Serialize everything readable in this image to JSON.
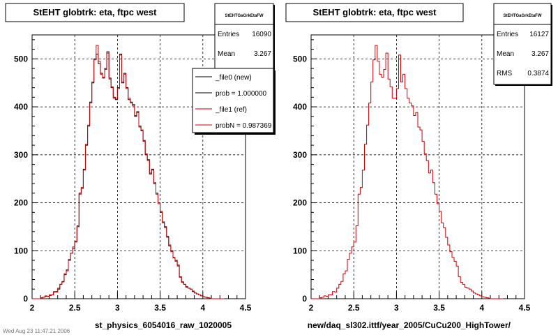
{
  "chart_data": [
    {
      "type": "histogram",
      "title": "StEHT globtrk: eta, ftpc west",
      "xlabel": "st_physics_6054016_raw_1020005",
      "xlim": [
        2,
        4.5
      ],
      "ylim": [
        0,
        550
      ],
      "x_ticks": [
        "2",
        "2.5",
        "3",
        "3.5",
        "4",
        "4.5"
      ],
      "y_ticks": [
        "0",
        "100",
        "200",
        "300",
        "400",
        "500"
      ],
      "grid": true,
      "bin_edges_start": 2.0,
      "bin_width": 0.025,
      "series": [
        {
          "name": "_file0 (new)",
          "color": "#000000",
          "values": [
            0,
            0,
            0,
            0,
            2,
            3,
            5,
            5,
            7,
            8,
            14,
            15,
            20,
            30,
            35,
            50,
            60,
            80,
            95,
            105,
            120,
            150,
            220,
            230,
            270,
            320,
            360,
            410,
            450,
            500,
            510,
            490,
            470,
            460,
            480,
            515,
            460,
            440,
            420,
            415,
            440,
            510,
            450,
            470,
            440,
            415,
            410,
            405,
            380,
            390,
            360,
            350,
            330,
            300,
            290,
            260,
            270,
            240,
            220,
            200,
            180,
            160,
            150,
            130,
            110,
            100,
            85,
            80,
            70,
            45,
            35,
            30,
            25,
            22,
            20,
            15,
            12,
            10,
            8,
            6,
            4,
            3,
            2,
            1,
            0,
            0,
            0,
            0,
            0,
            0
          ]
        },
        {
          "name": "_file1 (ref)",
          "color": "#cc0000",
          "values": [
            0,
            0,
            0,
            0,
            2,
            3,
            6,
            5,
            8,
            8,
            15,
            14,
            22,
            30,
            36,
            52,
            58,
            82,
            95,
            108,
            118,
            152,
            218,
            232,
            268,
            322,
            362,
            408,
            452,
            498,
            528,
            495,
            468,
            462,
            478,
            512,
            458,
            442,
            418,
            418,
            438,
            508,
            452,
            468,
            438,
            418,
            408,
            402,
            382,
            388,
            358,
            352,
            328,
            302,
            288,
            262,
            268,
            242,
            218,
            198,
            182,
            158,
            148,
            128,
            112,
            98,
            86,
            78,
            68,
            46,
            34,
            30,
            24,
            22,
            20,
            16,
            12,
            10,
            8,
            6,
            4,
            3,
            2,
            1,
            0,
            0,
            0,
            0,
            0,
            0
          ]
        }
      ],
      "stats": {
        "header": "StEHTGaGrkEtaFW",
        "rows": [
          {
            "label": "Entries",
            "value": "16090"
          },
          {
            "label": "Mean",
            "value": "3.267"
          }
        ]
      },
      "legend": [
        {
          "label": "_file0 (new)",
          "color": "#000000"
        },
        {
          "label": "prob = 1.000000",
          "color": "#000000"
        },
        {
          "label": "_file1 (ref)",
          "color": "#cc0000"
        },
        {
          "label": "probN = 0.987369",
          "color": "#cc0000"
        }
      ]
    },
    {
      "type": "histogram",
      "title": "StEHT globtrk: eta, ftpc west",
      "xlabel": "new/daq_sl302.ittf/year_2005/CuCu200_HighTower/",
      "xlim": [
        2,
        4.5
      ],
      "ylim": [
        0,
        550
      ],
      "x_ticks": [
        "2",
        "2.5",
        "3",
        "3.5",
        "4",
        "4.5"
      ],
      "y_ticks": [
        "0",
        "100",
        "200",
        "300",
        "400",
        "500"
      ],
      "grid": true,
      "bin_edges_start": 2.0,
      "bin_width": 0.025,
      "series": [
        {
          "color": "#cc0000",
          "values": [
            0,
            0,
            0,
            0,
            2,
            3,
            6,
            5,
            8,
            8,
            15,
            14,
            22,
            30,
            36,
            52,
            58,
            82,
            95,
            108,
            118,
            152,
            218,
            232,
            268,
            322,
            362,
            408,
            452,
            498,
            528,
            495,
            468,
            462,
            478,
            512,
            458,
            442,
            418,
            418,
            438,
            508,
            452,
            468,
            438,
            418,
            408,
            402,
            382,
            388,
            358,
            352,
            328,
            302,
            288,
            262,
            268,
            242,
            218,
            198,
            182,
            158,
            148,
            128,
            112,
            98,
            86,
            78,
            68,
            46,
            34,
            30,
            24,
            22,
            20,
            16,
            12,
            10,
            8,
            6,
            4,
            3,
            2,
            1,
            0,
            0,
            0,
            0,
            0,
            0
          ]
        }
      ],
      "stats": {
        "header": "StEHTGaGrkEtaFW",
        "rows": [
          {
            "label": "Entries",
            "value": "16127"
          },
          {
            "label": "Mean",
            "value": "3.267"
          },
          {
            "label": "RMS",
            "value": "0.3874"
          }
        ]
      }
    }
  ],
  "footer_text": "Wed Aug 23 11:47:21 2006"
}
